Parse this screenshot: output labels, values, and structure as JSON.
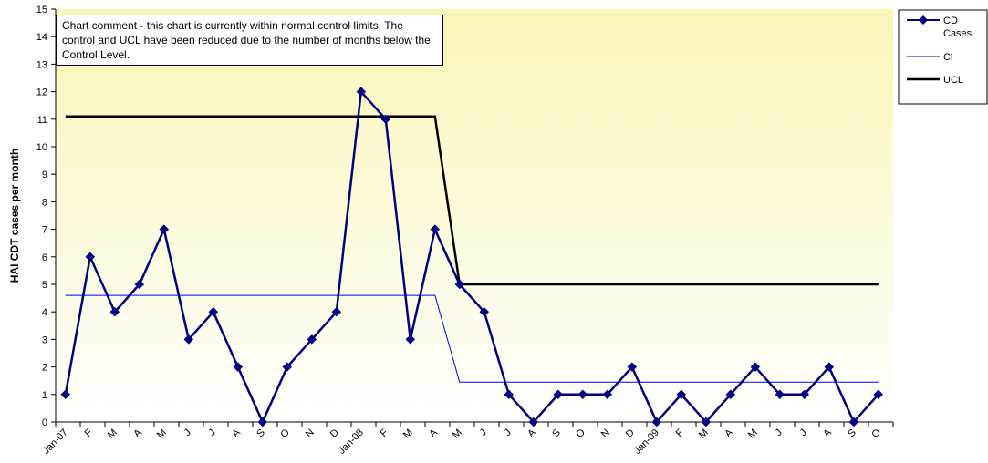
{
  "chart_data": {
    "type": "line",
    "comment": "Chart comment - this chart is currently within normal control limits.  The control and UCL have been reduced due to the number of months below the Control Level.",
    "ylabel": "HAI CDT cases per month",
    "xlabel": "",
    "ylim": [
      0,
      15
    ],
    "yticks": [
      0,
      1,
      2,
      3,
      4,
      5,
      6,
      7,
      8,
      9,
      10,
      11,
      12,
      13,
      14,
      15
    ],
    "categories": [
      "Jan-07",
      "F",
      "M",
      "A",
      "M",
      "J",
      "J",
      "A",
      "S",
      "O",
      "N",
      "D",
      "Jan-08",
      "F",
      "M",
      "A",
      "M",
      "J",
      "J",
      "A",
      "S",
      "O",
      "N",
      "D",
      "Jan-09",
      "F",
      "M",
      "A",
      "M",
      "J",
      "J",
      "A",
      "S",
      "O"
    ],
    "series": [
      {
        "name": "CD Cases",
        "color": "#000080",
        "marker": "diamond",
        "values": [
          1,
          6,
          4,
          5,
          7,
          3,
          4,
          2,
          0,
          2,
          3,
          4,
          12,
          11,
          3,
          7,
          5,
          4,
          1,
          0,
          1,
          1,
          1,
          2,
          0,
          1,
          0,
          1,
          2,
          1,
          1,
          2,
          0,
          1
        ]
      },
      {
        "name": "Cl",
        "color": "#0000FF",
        "values": [
          4.6,
          4.6,
          4.6,
          4.6,
          4.6,
          4.6,
          4.6,
          4.6,
          4.6,
          4.6,
          4.6,
          4.6,
          4.6,
          4.6,
          4.6,
          4.6,
          1.45,
          1.45,
          1.45,
          1.45,
          1.45,
          1.45,
          1.45,
          1.45,
          1.45,
          1.45,
          1.45,
          1.45,
          1.45,
          1.45,
          1.45,
          1.45,
          1.45,
          1.45
        ]
      },
      {
        "name": "UCL",
        "color": "#000000",
        "values": [
          11.1,
          11.1,
          11.1,
          11.1,
          11.1,
          11.1,
          11.1,
          11.1,
          11.1,
          11.1,
          11.1,
          11.1,
          11.1,
          11.1,
          11.1,
          11.1,
          5,
          5,
          5,
          5,
          5,
          5,
          5,
          5,
          5,
          5,
          5,
          5,
          5,
          5,
          5,
          5,
          5,
          5
        ]
      }
    ],
    "legend": {
      "placement": "right",
      "items": [
        {
          "line1": "CD",
          "line2": "Cases"
        },
        {
          "line1": "Cl",
          "line2": ""
        },
        {
          "line1": "UCL",
          "line2": ""
        }
      ]
    },
    "background": {
      "top": "#f9f6b6",
      "bottom": "#ffffff"
    },
    "grid": false
  }
}
